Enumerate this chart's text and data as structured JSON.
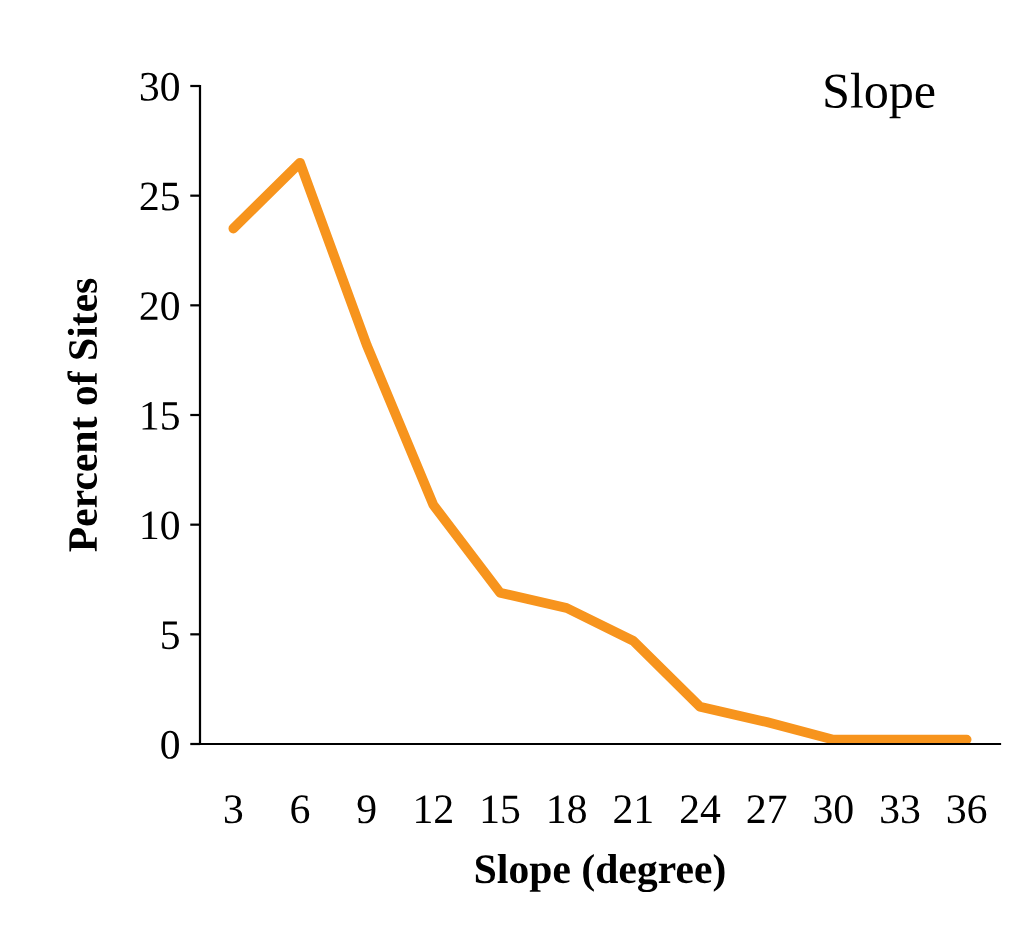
{
  "chart_data": {
    "type": "line",
    "title": "Slope",
    "xlabel": "Slope (degree)",
    "ylabel": "Percent of Sites",
    "categories": [
      "3",
      "6",
      "9",
      "12",
      "15",
      "18",
      "21",
      "24",
      "27",
      "30",
      "33",
      "36"
    ],
    "series": [
      {
        "color": "#f7941d",
        "values": [
          23.5,
          26.5,
          18.2,
          10.9,
          6.9,
          6.2,
          4.7,
          1.7,
          1.0,
          0.2,
          0.2,
          0.2
        ]
      }
    ],
    "ylim": [
      0,
      30
    ],
    "yticks": [
      0,
      5,
      10,
      15,
      20,
      25,
      30
    ],
    "grid": false,
    "legend": false,
    "marker": "none",
    "line_style": "solid"
  }
}
